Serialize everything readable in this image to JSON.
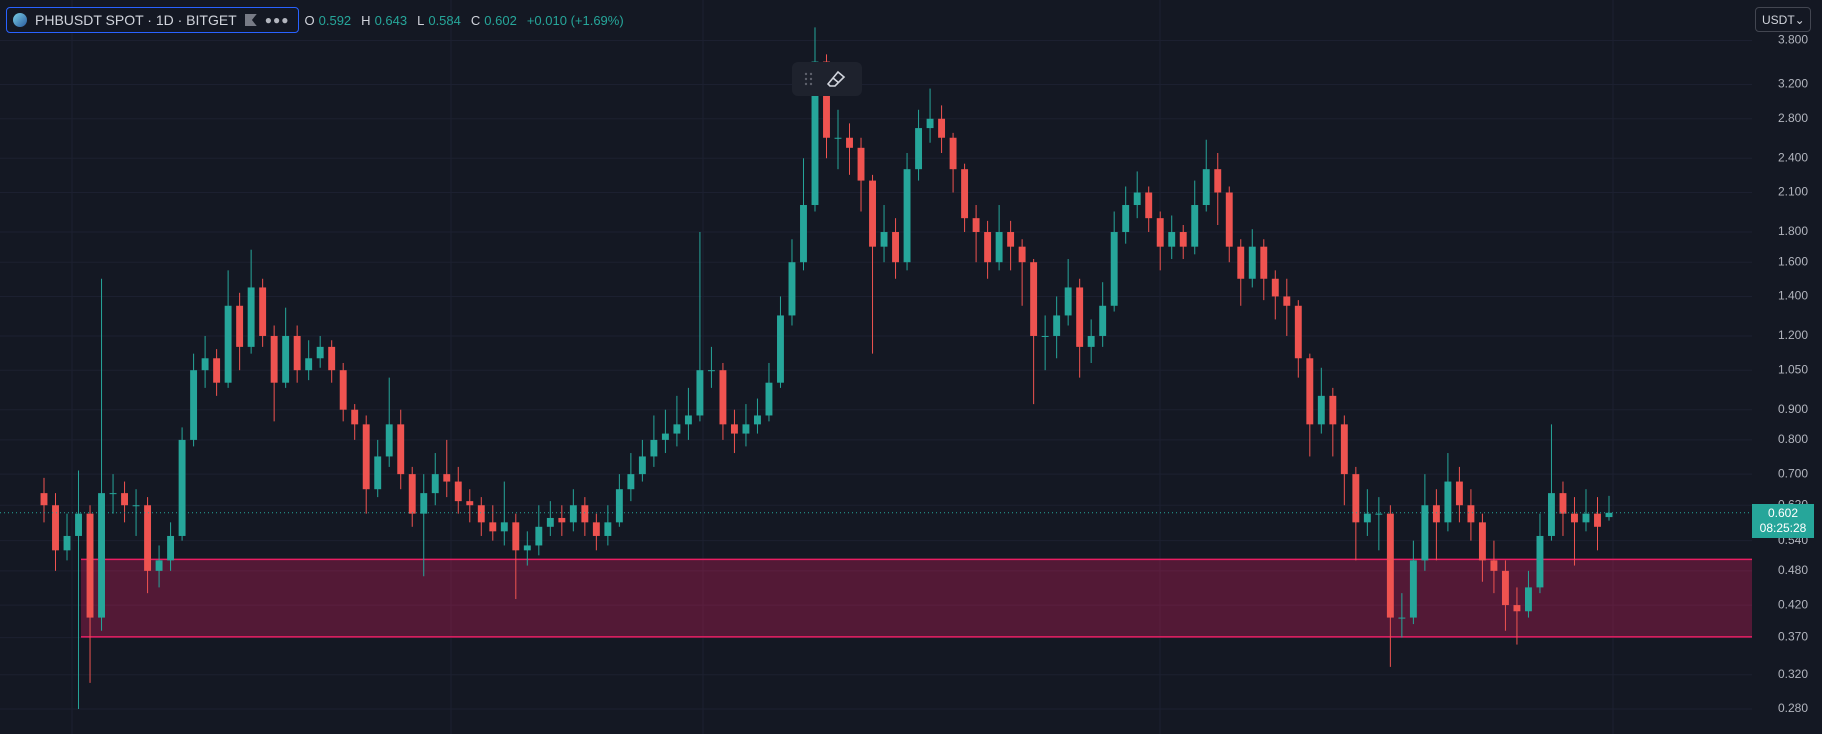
{
  "chart_data": {
    "type": "candlestick",
    "title": "PHBUSDT SPOT · 1D · BITGET",
    "ohlc_labels": [
      "O",
      "H",
      "L",
      "C"
    ],
    "change": "+0.010 (+1.69%)",
    "quote_currency": "USDT",
    "countdown": "08:25:28",
    "log_scale": true,
    "grid": true,
    "up_color": "#26a69a",
    "down_color": "#ef5350",
    "zone": {
      "low": 0.371,
      "high": 0.502,
      "color": "#e91e63"
    },
    "ylim": [
      0.254,
      4.45
    ],
    "yticks": [
      {
        "value": 3.8,
        "label": "3.800"
      },
      {
        "value": 3.2,
        "label": "3.200"
      },
      {
        "value": 2.8,
        "label": "2.800"
      },
      {
        "value": 2.4,
        "label": "2.400"
      },
      {
        "value": 2.1,
        "label": "2.100"
      },
      {
        "value": 1.8,
        "label": "1.800"
      },
      {
        "value": 1.6,
        "label": "1.600"
      },
      {
        "value": 1.4,
        "label": "1.400"
      },
      {
        "value": 1.2,
        "label": "1.200"
      },
      {
        "value": 1.05,
        "label": "1.050"
      },
      {
        "value": 0.9,
        "label": "0.900"
      },
      {
        "value": 0.8,
        "label": "0.800"
      },
      {
        "value": 0.7,
        "label": "0.700"
      },
      {
        "value": 0.62,
        "label": "0.620"
      },
      {
        "value": 0.54,
        "label": "0.540"
      },
      {
        "value": 0.48,
        "label": "0.480"
      },
      {
        "value": 0.42,
        "label": "0.420"
      },
      {
        "value": 0.37,
        "label": "0.370"
      },
      {
        "value": 0.32,
        "label": "0.320"
      },
      {
        "value": 0.28,
        "label": "0.280"
      }
    ],
    "open": [
      0.65,
      0.62,
      0.52,
      0.55,
      0.6,
      0.4,
      0.65,
      0.65,
      0.62,
      0.62,
      0.48,
      0.5,
      0.55,
      0.8,
      1.05,
      1.1,
      1.0,
      1.35,
      1.15,
      1.45,
      1.2,
      1.0,
      1.2,
      1.05,
      1.1,
      1.15,
      1.05,
      0.9,
      0.85,
      0.66,
      0.75,
      0.85,
      0.7,
      0.6,
      0.65,
      0.7,
      0.68,
      0.63,
      0.62,
      0.58,
      0.56,
      0.58,
      0.52,
      0.53,
      0.57,
      0.59,
      0.58,
      0.62,
      0.58,
      0.55,
      0.58,
      0.66,
      0.7,
      0.75,
      0.8,
      0.82,
      0.85,
      0.88,
      1.05,
      1.05,
      0.85,
      0.82,
      0.85,
      0.88,
      1.0,
      1.3,
      1.6,
      2.0,
      3.5,
      2.6,
      2.6,
      2.5,
      2.2,
      1.7,
      1.8,
      1.6,
      2.3,
      2.7,
      2.8,
      2.6,
      2.3,
      1.9,
      1.8,
      1.6,
      1.8,
      1.7,
      1.6,
      1.2,
      1.2,
      1.3,
      1.45,
      1.15,
      1.2,
      1.35,
      1.8,
      2.0,
      2.1,
      1.9,
      1.7,
      1.8,
      1.7,
      2.0,
      2.3,
      2.1,
      1.7,
      1.5,
      1.7,
      1.5,
      1.4,
      1.35,
      1.1,
      0.85,
      0.95,
      0.85,
      0.7,
      0.58,
      0.6,
      0.6,
      0.4,
      0.4,
      0.5,
      0.62,
      0.58,
      0.68,
      0.62,
      0.58,
      0.5,
      0.48,
      0.42,
      0.41,
      0.45,
      0.55,
      0.65,
      0.6,
      0.58,
      0.6,
      0.592
    ],
    "high": [
      0.69,
      0.65,
      0.6,
      0.71,
      0.62,
      1.5,
      0.7,
      0.68,
      0.66,
      0.64,
      0.53,
      0.58,
      0.84,
      1.12,
      1.2,
      1.14,
      1.55,
      1.42,
      1.68,
      1.5,
      1.25,
      1.34,
      1.25,
      1.18,
      1.2,
      1.18,
      1.08,
      0.92,
      0.88,
      0.8,
      1.02,
      0.9,
      0.72,
      0.7,
      0.76,
      0.8,
      0.72,
      0.66,
      0.64,
      0.62,
      0.68,
      0.6,
      0.56,
      0.62,
      0.63,
      0.62,
      0.66,
      0.64,
      0.6,
      0.62,
      0.7,
      0.76,
      0.8,
      0.88,
      0.9,
      0.95,
      0.98,
      1.8,
      1.15,
      1.08,
      0.9,
      0.92,
      0.94,
      1.08,
      1.4,
      1.75,
      2.4,
      4.0,
      3.6,
      2.9,
      2.75,
      2.6,
      2.25,
      2.0,
      1.9,
      2.45,
      2.9,
      3.15,
      2.95,
      2.65,
      2.35,
      2.0,
      1.88,
      2.0,
      1.88,
      1.75,
      1.62,
      1.3,
      1.4,
      1.62,
      1.5,
      1.28,
      1.48,
      1.95,
      2.15,
      2.28,
      2.15,
      1.95,
      1.92,
      1.85,
      2.2,
      2.58,
      2.45,
      2.15,
      1.75,
      1.82,
      1.75,
      1.55,
      1.5,
      1.38,
      1.12,
      1.06,
      0.98,
      0.88,
      0.72,
      0.66,
      0.64,
      0.62,
      0.44,
      0.54,
      0.7,
      0.66,
      0.76,
      0.72,
      0.66,
      0.6,
      0.54,
      0.5,
      0.45,
      0.48,
      0.6,
      0.85,
      0.68,
      0.64,
      0.66,
      0.64,
      0.643
    ],
    "low": [
      0.58,
      0.48,
      0.5,
      0.28,
      0.31,
      0.38,
      0.6,
      0.58,
      0.55,
      0.44,
      0.45,
      0.48,
      0.54,
      0.78,
      0.98,
      0.95,
      0.98,
      1.05,
      1.12,
      1.15,
      0.86,
      0.98,
      1.0,
      1.01,
      1.06,
      1.0,
      0.86,
      0.8,
      0.6,
      0.64,
      0.72,
      0.66,
      0.57,
      0.47,
      0.62,
      0.64,
      0.6,
      0.58,
      0.55,
      0.54,
      0.53,
      0.43,
      0.49,
      0.51,
      0.55,
      0.55,
      0.56,
      0.55,
      0.52,
      0.53,
      0.57,
      0.63,
      0.68,
      0.72,
      0.76,
      0.78,
      0.8,
      0.86,
      0.98,
      0.8,
      0.76,
      0.78,
      0.82,
      0.86,
      0.98,
      1.25,
      1.55,
      1.95,
      2.4,
      2.3,
      2.25,
      1.95,
      1.12,
      1.6,
      1.5,
      1.55,
      2.2,
      2.55,
      2.45,
      2.1,
      1.8,
      1.6,
      1.5,
      1.55,
      1.55,
      1.35,
      0.92,
      1.05,
      1.1,
      1.25,
      1.02,
      1.08,
      1.15,
      1.32,
      1.72,
      1.9,
      1.8,
      1.55,
      1.62,
      1.62,
      1.65,
      1.95,
      1.85,
      1.6,
      1.35,
      1.45,
      1.38,
      1.28,
      1.2,
      1.02,
      0.75,
      0.82,
      0.75,
      0.62,
      0.5,
      0.55,
      0.52,
      0.33,
      0.37,
      0.39,
      0.48,
      0.5,
      0.56,
      0.58,
      0.54,
      0.46,
      0.44,
      0.38,
      0.36,
      0.4,
      0.44,
      0.54,
      0.55,
      0.49,
      0.56,
      0.52,
      0.584
    ],
    "close": [
      0.62,
      0.52,
      0.55,
      0.6,
      0.4,
      0.65,
      0.65,
      0.62,
      0.62,
      0.48,
      0.5,
      0.55,
      0.8,
      1.05,
      1.1,
      1.0,
      1.35,
      1.15,
      1.45,
      1.2,
      1.0,
      1.2,
      1.05,
      1.1,
      1.15,
      1.05,
      0.9,
      0.85,
      0.66,
      0.75,
      0.85,
      0.7,
      0.6,
      0.65,
      0.7,
      0.68,
      0.63,
      0.62,
      0.58,
      0.56,
      0.58,
      0.52,
      0.53,
      0.57,
      0.59,
      0.58,
      0.62,
      0.58,
      0.55,
      0.58,
      0.66,
      0.7,
      0.75,
      0.8,
      0.82,
      0.85,
      0.88,
      1.05,
      1.05,
      0.85,
      0.82,
      0.85,
      0.88,
      1.0,
      1.3,
      1.6,
      2.0,
      3.5,
      2.6,
      2.6,
      2.5,
      2.2,
      1.7,
      1.8,
      1.6,
      2.3,
      2.7,
      2.8,
      2.6,
      2.3,
      1.9,
      1.8,
      1.6,
      1.8,
      1.7,
      1.6,
      1.2,
      1.2,
      1.3,
      1.45,
      1.15,
      1.2,
      1.35,
      1.8,
      2.0,
      2.1,
      1.9,
      1.7,
      1.8,
      1.7,
      2.0,
      2.3,
      2.1,
      1.7,
      1.5,
      1.7,
      1.5,
      1.4,
      1.35,
      1.1,
      0.85,
      0.95,
      0.85,
      0.7,
      0.58,
      0.6,
      0.6,
      0.4,
      0.4,
      0.5,
      0.62,
      0.58,
      0.68,
      0.62,
      0.58,
      0.5,
      0.48,
      0.42,
      0.41,
      0.45,
      0.55,
      0.65,
      0.6,
      0.58,
      0.6,
      0.57,
      0.602
    ]
  }
}
